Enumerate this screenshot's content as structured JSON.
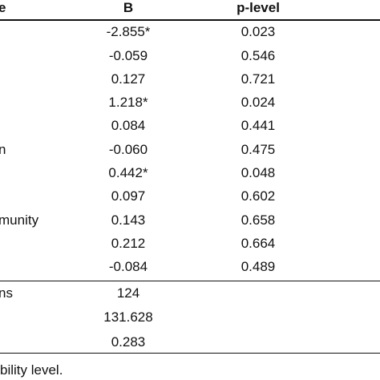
{
  "table": {
    "header": [
      "e",
      "B",
      "p-level"
    ],
    "rows": [
      {
        "b": "-2.855*",
        "p": "0.023"
      },
      {
        "b": "-0.059",
        "p": "0.546"
      },
      {
        "b": "0.127",
        "p": "0.721"
      },
      {
        "b": "1.218*",
        "p": "0.024"
      },
      {
        "b": "0.084",
        "p": "0.441"
      },
      {
        "label": "n",
        "b": "-0.060",
        "p": "0.475"
      },
      {
        "b": "0.442*",
        "p": "0.048"
      },
      {
        "b": "0.097",
        "p": "0.602"
      },
      {
        "label": "munity",
        "b": "0.143",
        "p": "0.658"
      },
      {
        "b": "0.212",
        "p": "0.664"
      },
      {
        "b": "-0.084",
        "p": "0.489"
      },
      {
        "label": "ns",
        "b": "124"
      },
      {
        "b": "131.628"
      },
      {
        "b": "0.283"
      }
    ]
  },
  "footer": "bility level."
}
